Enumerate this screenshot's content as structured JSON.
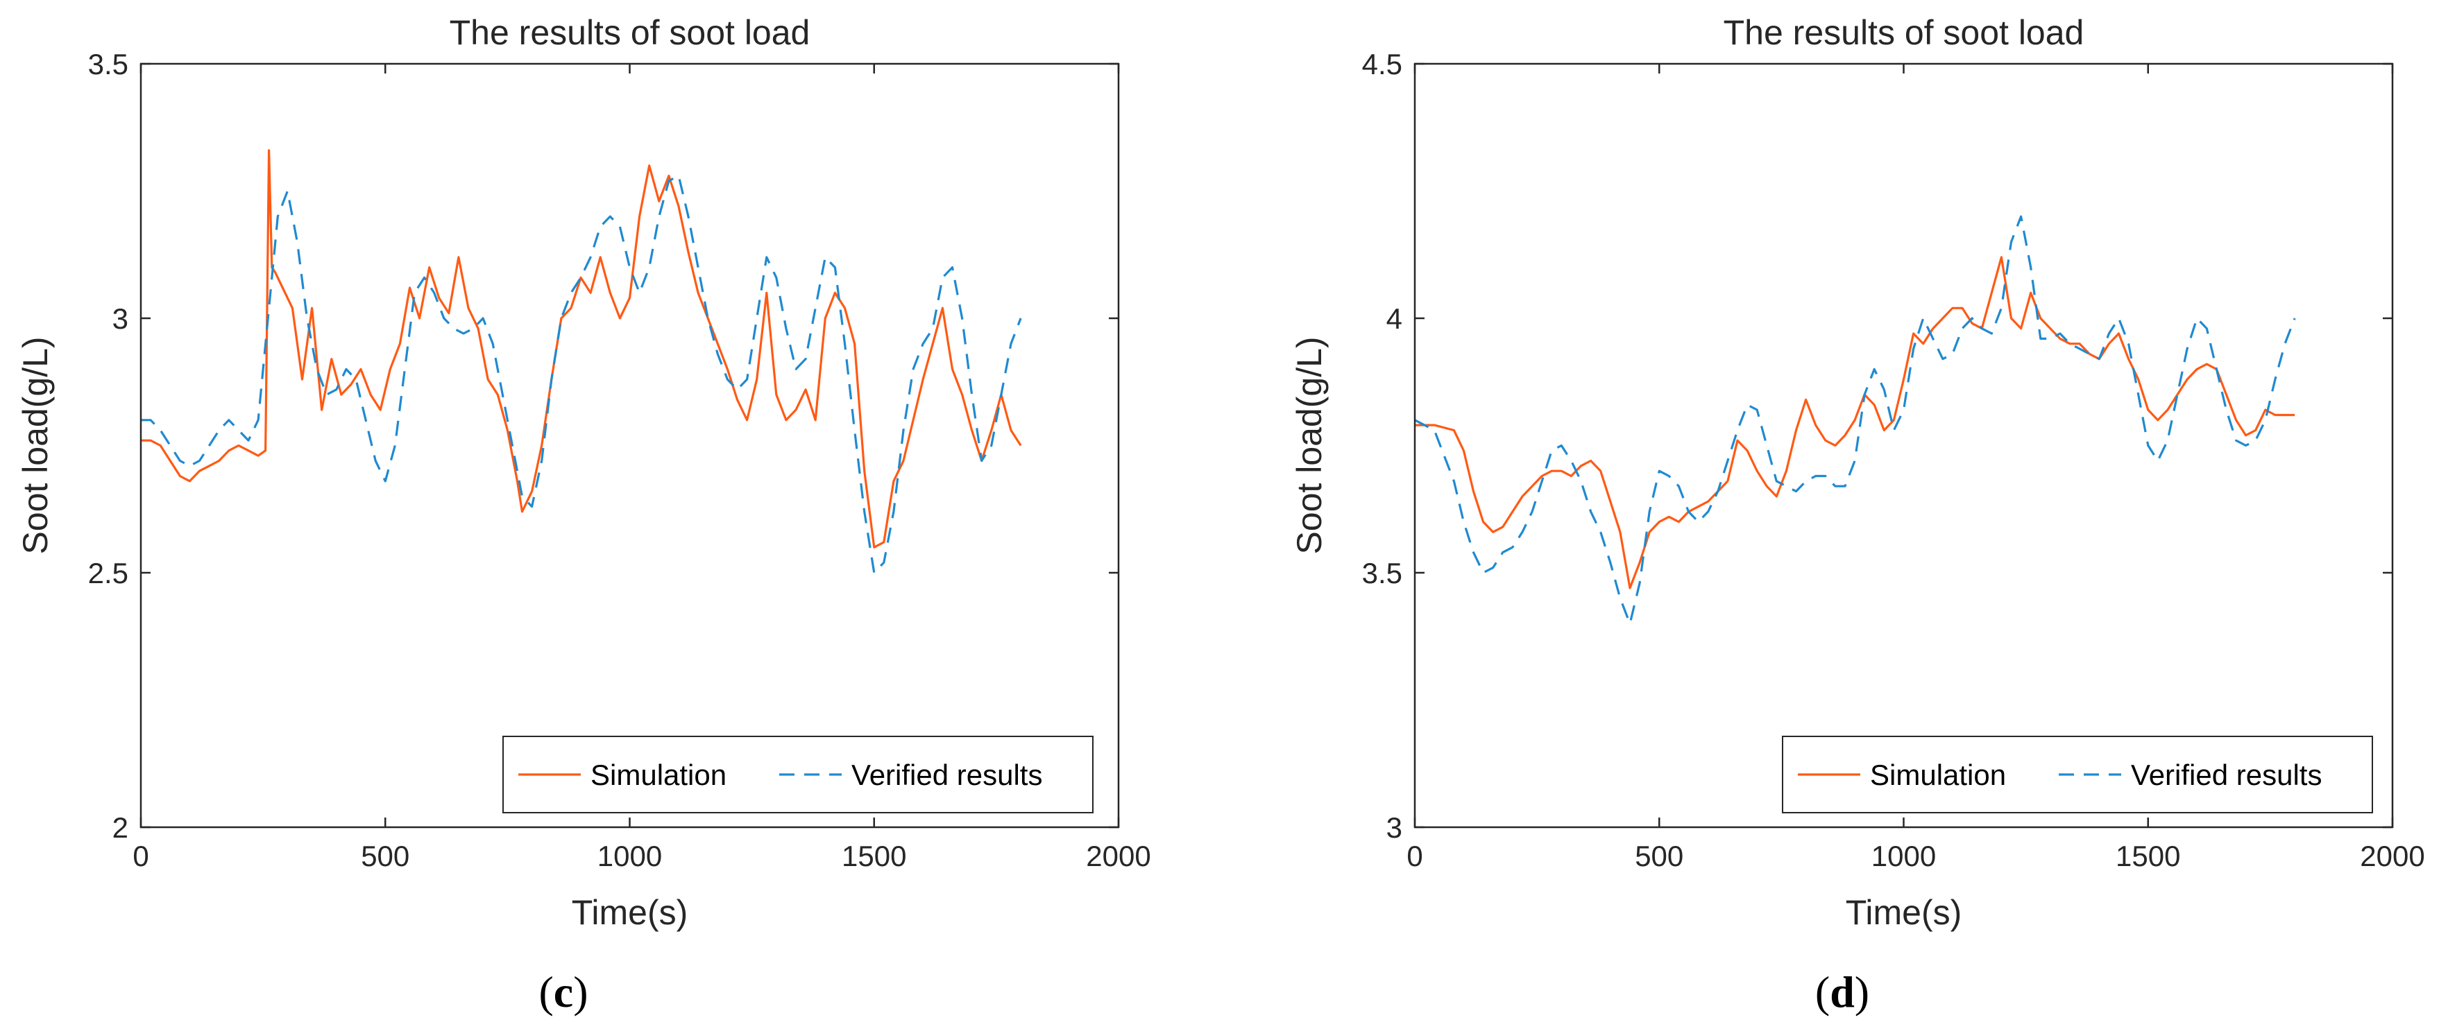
{
  "chart_data": [
    {
      "panel": "c",
      "type": "line",
      "title": "The results of soot load",
      "xlabel": "Time(s)",
      "ylabel": "Soot load(g/L)",
      "xlim": [
        0,
        2000
      ],
      "ylim": [
        2,
        3.5
      ],
      "xticks": [
        0,
        500,
        1000,
        1500,
        2000
      ],
      "xtick_labels": [
        "0",
        "500",
        "1000",
        "1500",
        "2000"
      ],
      "yticks": [
        2,
        2.5,
        3,
        3.5
      ],
      "ytick_labels": [
        "2",
        "2.5",
        "3",
        "3.5"
      ],
      "legend_location": "bottom-right",
      "series": [
        {
          "name": "Simulation",
          "color": "#ff5a14",
          "style": "solid",
          "x": [
            0,
            20,
            40,
            60,
            80,
            100,
            120,
            140,
            160,
            180,
            200,
            220,
            240,
            255,
            262,
            268,
            275,
            290,
            310,
            330,
            350,
            370,
            390,
            410,
            430,
            450,
            470,
            490,
            510,
            530,
            550,
            570,
            590,
            610,
            630,
            650,
            670,
            690,
            710,
            730,
            750,
            770,
            780,
            800,
            820,
            840,
            860,
            880,
            900,
            920,
            940,
            960,
            980,
            1000,
            1020,
            1040,
            1060,
            1080,
            1100,
            1120,
            1140,
            1160,
            1180,
            1200,
            1220,
            1240,
            1260,
            1280,
            1300,
            1320,
            1340,
            1360,
            1380,
            1400,
            1420,
            1440,
            1460,
            1480,
            1500,
            1520,
            1540,
            1560,
            1580,
            1600,
            1620,
            1640,
            1660,
            1680,
            1700,
            1720,
            1740,
            1760,
            1780,
            1800
          ],
          "y": [
            2.76,
            2.76,
            2.75,
            2.72,
            2.69,
            2.68,
            2.7,
            2.71,
            2.72,
            2.74,
            2.75,
            2.74,
            2.73,
            2.74,
            3.33,
            3.1,
            3.09,
            3.06,
            3.02,
            2.88,
            3.02,
            2.82,
            2.92,
            2.85,
            2.87,
            2.9,
            2.85,
            2.82,
            2.9,
            2.95,
            3.06,
            3.0,
            3.1,
            3.04,
            3.01,
            3.12,
            3.02,
            2.98,
            2.88,
            2.85,
            2.78,
            2.68,
            2.62,
            2.66,
            2.75,
            2.88,
            3.0,
            3.02,
            3.08,
            3.05,
            3.12,
            3.05,
            3.0,
            3.04,
            3.2,
            3.3,
            3.23,
            3.28,
            3.22,
            3.13,
            3.05,
            3.0,
            2.95,
            2.9,
            2.84,
            2.8,
            2.88,
            3.05,
            2.85,
            2.8,
            2.82,
            2.86,
            2.8,
            3.0,
            3.05,
            3.02,
            2.95,
            2.7,
            2.55,
            2.56,
            2.68,
            2.72,
            2.8,
            2.88,
            2.95,
            3.02,
            2.9,
            2.85,
            2.78,
            2.72,
            2.78,
            2.85,
            2.78,
            2.75
          ]
        },
        {
          "name": "Verified results",
          "color": "#1f8ad0",
          "style": "dashed",
          "x": [
            0,
            20,
            40,
            60,
            80,
            100,
            120,
            140,
            160,
            180,
            200,
            220,
            240,
            260,
            280,
            300,
            320,
            340,
            360,
            380,
            400,
            420,
            440,
            460,
            480,
            500,
            520,
            540,
            560,
            580,
            600,
            620,
            640,
            660,
            680,
            700,
            720,
            740,
            760,
            780,
            800,
            820,
            840,
            860,
            880,
            900,
            920,
            940,
            960,
            980,
            1000,
            1020,
            1040,
            1060,
            1080,
            1100,
            1120,
            1140,
            1160,
            1180,
            1200,
            1220,
            1240,
            1260,
            1280,
            1300,
            1320,
            1340,
            1360,
            1380,
            1400,
            1420,
            1440,
            1460,
            1480,
            1500,
            1520,
            1540,
            1560,
            1580,
            1600,
            1620,
            1640,
            1660,
            1680,
            1700,
            1720,
            1740,
            1760,
            1780,
            1800
          ],
          "y": [
            2.8,
            2.8,
            2.78,
            2.75,
            2.72,
            2.71,
            2.72,
            2.75,
            2.78,
            2.8,
            2.78,
            2.76,
            2.8,
            3.0,
            3.2,
            3.25,
            3.15,
            3.0,
            2.9,
            2.85,
            2.86,
            2.9,
            2.88,
            2.8,
            2.72,
            2.68,
            2.75,
            2.9,
            3.05,
            3.08,
            3.05,
            3.0,
            2.98,
            2.97,
            2.98,
            3.0,
            2.95,
            2.85,
            2.75,
            2.65,
            2.63,
            2.72,
            2.88,
            3.0,
            3.05,
            3.08,
            3.12,
            3.18,
            3.2,
            3.18,
            3.1,
            3.05,
            3.1,
            3.2,
            3.27,
            3.28,
            3.2,
            3.1,
            3.0,
            2.93,
            2.88,
            2.86,
            2.88,
            3.0,
            3.12,
            3.08,
            2.98,
            2.9,
            2.92,
            3.02,
            3.12,
            3.1,
            2.95,
            2.78,
            2.62,
            2.5,
            2.52,
            2.62,
            2.78,
            2.9,
            2.95,
            2.98,
            3.08,
            3.1,
            3.0,
            2.85,
            2.72,
            2.75,
            2.85,
            2.95,
            3.0
          ]
        }
      ]
    },
    {
      "panel": "d",
      "type": "line",
      "title": "The results of soot load",
      "xlabel": "Time(s)",
      "ylabel": "Soot load(g/L)",
      "xlim": [
        0,
        2000
      ],
      "ylim": [
        3,
        4.5
      ],
      "xticks": [
        0,
        500,
        1000,
        1500,
        2000
      ],
      "xtick_labels": [
        "0",
        "500",
        "1000",
        "1500",
        "2000"
      ],
      "yticks": [
        3,
        3.5,
        4,
        4.5
      ],
      "ytick_labels": [
        "3",
        "3.5",
        "4",
        "4.5"
      ],
      "legend_location": "bottom-right",
      "series": [
        {
          "name": "Simulation",
          "color": "#ff5a14",
          "style": "solid",
          "x": [
            0,
            40,
            80,
            100,
            120,
            140,
            160,
            180,
            200,
            220,
            240,
            260,
            280,
            300,
            320,
            340,
            360,
            380,
            400,
            420,
            440,
            460,
            480,
            500,
            520,
            540,
            560,
            580,
            600,
            620,
            640,
            660,
            680,
            700,
            720,
            740,
            760,
            780,
            800,
            820,
            840,
            860,
            880,
            900,
            920,
            940,
            960,
            980,
            1000,
            1020,
            1040,
            1060,
            1080,
            1100,
            1120,
            1140,
            1160,
            1180,
            1200,
            1220,
            1240,
            1260,
            1280,
            1300,
            1320,
            1340,
            1360,
            1380,
            1400,
            1420,
            1440,
            1460,
            1480,
            1500,
            1520,
            1540,
            1560,
            1580,
            1600,
            1620,
            1640,
            1660,
            1680,
            1700,
            1720,
            1740,
            1760,
            1780,
            1800
          ],
          "y": [
            3.79,
            3.79,
            3.78,
            3.74,
            3.66,
            3.6,
            3.58,
            3.59,
            3.62,
            3.65,
            3.67,
            3.69,
            3.7,
            3.7,
            3.69,
            3.71,
            3.72,
            3.7,
            3.64,
            3.58,
            3.47,
            3.52,
            3.58,
            3.6,
            3.61,
            3.6,
            3.62,
            3.63,
            3.64,
            3.66,
            3.68,
            3.76,
            3.74,
            3.7,
            3.67,
            3.65,
            3.7,
            3.78,
            3.84,
            3.79,
            3.76,
            3.75,
            3.77,
            3.8,
            3.85,
            3.83,
            3.78,
            3.8,
            3.88,
            3.97,
            3.95,
            3.98,
            4.0,
            4.02,
            4.02,
            3.99,
            3.98,
            4.05,
            4.12,
            4.0,
            3.98,
            4.05,
            4.0,
            3.98,
            3.96,
            3.95,
            3.95,
            3.93,
            3.92,
            3.95,
            3.97,
            3.92,
            3.88,
            3.82,
            3.8,
            3.82,
            3.85,
            3.88,
            3.9,
            3.91,
            3.9,
            3.85,
            3.8,
            3.77,
            3.78,
            3.82,
            3.81,
            3.81,
            3.81
          ]
        },
        {
          "name": "Verified results",
          "color": "#1f8ad0",
          "style": "dashed",
          "x": [
            0,
            40,
            80,
            100,
            120,
            140,
            160,
            180,
            200,
            220,
            240,
            260,
            280,
            300,
            320,
            340,
            360,
            380,
            400,
            420,
            440,
            460,
            480,
            500,
            520,
            540,
            560,
            580,
            600,
            620,
            640,
            660,
            680,
            700,
            720,
            740,
            760,
            780,
            800,
            820,
            840,
            860,
            880,
            900,
            920,
            940,
            960,
            980,
            1000,
            1020,
            1040,
            1060,
            1080,
            1100,
            1120,
            1140,
            1160,
            1180,
            1200,
            1220,
            1240,
            1260,
            1280,
            1300,
            1320,
            1340,
            1360,
            1380,
            1400,
            1420,
            1440,
            1460,
            1480,
            1500,
            1520,
            1540,
            1560,
            1580,
            1600,
            1620,
            1640,
            1660,
            1680,
            1700,
            1720,
            1740,
            1760,
            1780,
            1800
          ],
          "y": [
            3.8,
            3.78,
            3.68,
            3.6,
            3.54,
            3.5,
            3.51,
            3.54,
            3.55,
            3.58,
            3.62,
            3.68,
            3.74,
            3.75,
            3.72,
            3.68,
            3.62,
            3.58,
            3.52,
            3.45,
            3.4,
            3.48,
            3.62,
            3.7,
            3.69,
            3.67,
            3.62,
            3.6,
            3.62,
            3.66,
            3.72,
            3.78,
            3.83,
            3.82,
            3.75,
            3.68,
            3.67,
            3.66,
            3.68,
            3.69,
            3.69,
            3.67,
            3.67,
            3.72,
            3.85,
            3.9,
            3.86,
            3.78,
            3.82,
            3.94,
            4.0,
            3.96,
            3.92,
            3.93,
            3.98,
            4.0,
            3.98,
            3.97,
            4.02,
            4.15,
            4.2,
            4.1,
            3.96,
            3.96,
            3.97,
            3.95,
            3.94,
            3.93,
            3.92,
            3.97,
            4.0,
            3.95,
            3.85,
            3.75,
            3.72,
            3.76,
            3.85,
            3.94,
            4.0,
            3.98,
            3.9,
            3.82,
            3.76,
            3.75,
            3.76,
            3.8,
            3.88,
            3.95,
            4.0
          ]
        }
      ]
    }
  ]
}
